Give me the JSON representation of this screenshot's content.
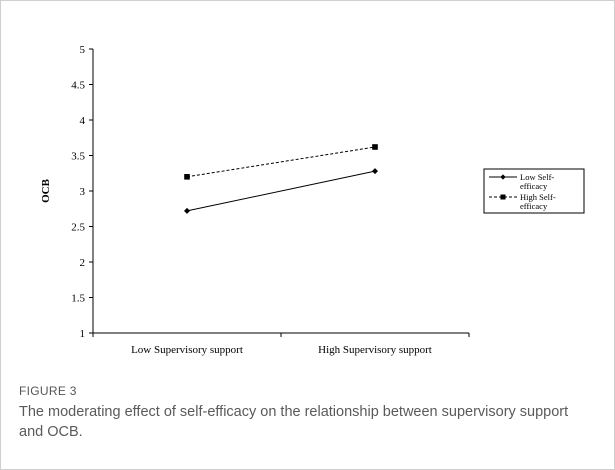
{
  "chart_data": {
    "type": "line",
    "categories": [
      "Low Supervisory support",
      "High Supervisory support"
    ],
    "series": [
      {
        "name": "Low Self-efficacy",
        "values": [
          2.72,
          3.28
        ],
        "line_style": "solid",
        "marker": "diamond"
      },
      {
        "name": "High Self-efficacy",
        "values": [
          3.2,
          3.62
        ],
        "line_style": "dashed",
        "marker": "square"
      }
    ],
    "ylabel": "OCB",
    "xlabel": "",
    "ylim": [
      1,
      5
    ],
    "yticks": [
      1,
      1.5,
      2,
      2.5,
      3,
      3.5,
      4,
      4.5,
      5
    ],
    "ytick_labels": [
      "1",
      "1.5",
      "2",
      "2.5",
      "3",
      "3.5",
      "4",
      "4.5",
      "5"
    ],
    "grid": false,
    "legend_position": "right",
    "legend_labels": [
      [
        "Low Self-",
        "efficacy"
      ],
      [
        "High Self-",
        "efficacy"
      ]
    ]
  },
  "caption": {
    "label": "FIGURE 3",
    "text": "The moderating effect of self-efficacy on the relationship between supervisory support and OCB."
  }
}
